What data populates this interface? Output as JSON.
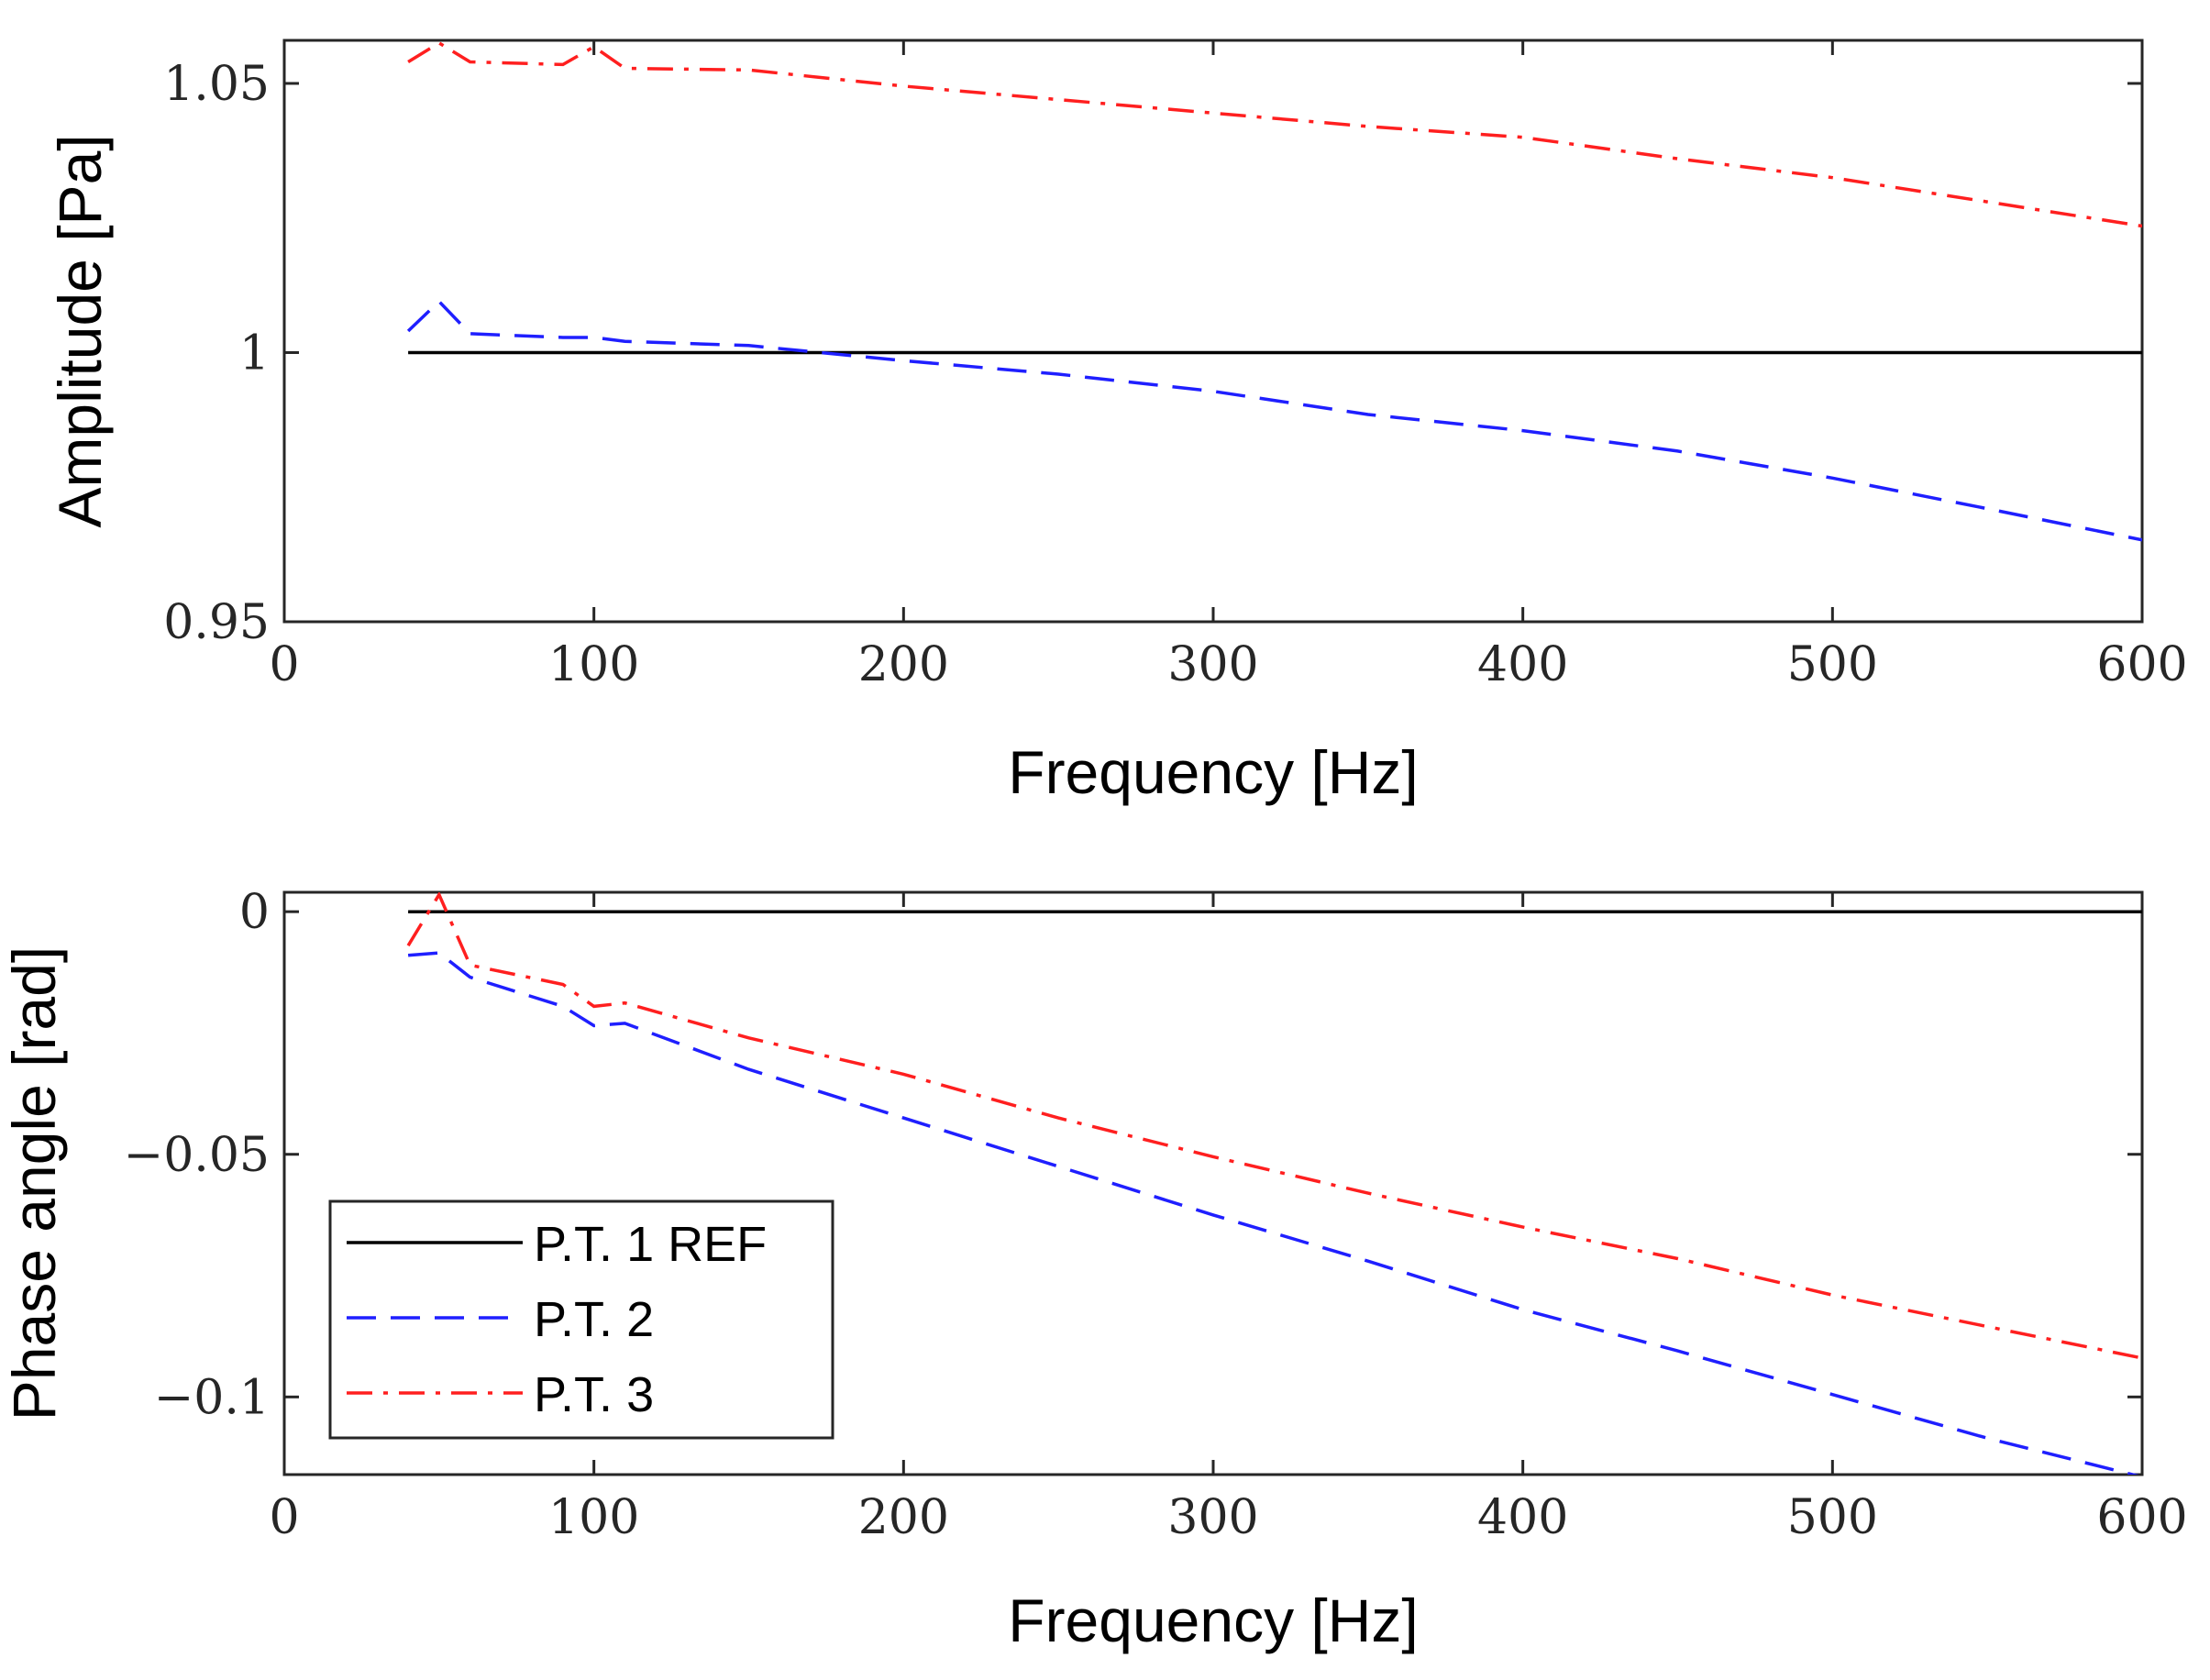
{
  "chart_data": [
    {
      "type": "line",
      "title": "",
      "xlabel": "Frequency [Hz]",
      "ylabel": "Amplitude [Pa]",
      "xlim": [
        0,
        600
      ],
      "ylim": [
        0.95,
        1.058
      ],
      "xticks": [
        0,
        100,
        200,
        300,
        400,
        500,
        600
      ],
      "xtick_labels": [
        "0",
        "100",
        "200",
        "300",
        "400",
        "500",
        "600"
      ],
      "yticks": [
        0.95,
        1,
        1.05
      ],
      "ytick_labels": [
        "0.95",
        "1",
        "1.05"
      ],
      "grid": false,
      "series": [
        {
          "name": "P.T. 1 REF",
          "color": "#000000",
          "style": "solid",
          "x": [
            40,
            600
          ],
          "y": [
            1.0,
            1.0
          ]
        },
        {
          "name": "P.T. 2",
          "color": "#1f1fff",
          "style": "dashed",
          "x": [
            40,
            50,
            60,
            90,
            100,
            110,
            150,
            200,
            250,
            300,
            350,
            400,
            450,
            500,
            550,
            600
          ],
          "y": [
            1.004,
            1.0095,
            1.0035,
            1.0028,
            1.0028,
            1.0021,
            1.0013,
            0.9985,
            0.996,
            0.9928,
            0.9885,
            0.9855,
            0.9817,
            0.9767,
            0.971,
            0.9652
          ]
        },
        {
          "name": "P.T. 3",
          "color": "#ff1f1f",
          "style": "dashdot",
          "x": [
            40,
            50,
            60,
            90,
            100,
            110,
            150,
            200,
            250,
            300,
            350,
            400,
            450,
            500,
            550,
            600
          ],
          "y": [
            1.054,
            1.0575,
            1.054,
            1.0535,
            1.0568,
            1.0528,
            1.0525,
            1.0495,
            1.047,
            1.0445,
            1.042,
            1.04,
            1.036,
            1.0325,
            1.028,
            1.0235
          ]
        }
      ]
    },
    {
      "type": "line",
      "title": "",
      "xlabel": "Frequency [Hz]",
      "ylabel": "Phase angle [rad]",
      "xlim": [
        0,
        600
      ],
      "ylim": [
        -0.116,
        0.004
      ],
      "xticks": [
        0,
        100,
        200,
        300,
        400,
        500,
        600
      ],
      "xtick_labels": [
        "0",
        "100",
        "200",
        "300",
        "400",
        "500",
        "600"
      ],
      "yticks": [
        0,
        -0.05,
        -0.1
      ],
      "ytick_labels": [
        "0",
        "−0.05",
        "−0.1"
      ],
      "grid": false,
      "legend": {
        "placement": "bottom-left",
        "entries": [
          "P.T. 1 REF",
          "P.T. 2",
          "P.T. 3"
        ]
      },
      "series": [
        {
          "name": "P.T. 1 REF",
          "color": "#000000",
          "style": "solid",
          "x": [
            40,
            600
          ],
          "y": [
            0.0,
            0.0
          ]
        },
        {
          "name": "P.T. 2",
          "color": "#1f1fff",
          "style": "dashed",
          "x": [
            40,
            50,
            60,
            90,
            100,
            110,
            150,
            200,
            250,
            300,
            350,
            400,
            450,
            500,
            550,
            600
          ],
          "y": [
            -0.009,
            -0.0085,
            -0.0135,
            -0.0195,
            -0.0235,
            -0.023,
            -0.0325,
            -0.0425,
            -0.0525,
            -0.0625,
            -0.072,
            -0.082,
            -0.0905,
            -0.0995,
            -0.1085,
            -0.1165
          ]
        },
        {
          "name": "P.T. 3",
          "color": "#ff1f1f",
          "style": "dashdot",
          "x": [
            40,
            50,
            60,
            90,
            100,
            110,
            150,
            200,
            250,
            300,
            350,
            400,
            450,
            500,
            550,
            600
          ],
          "y": [
            -0.007,
            0.0035,
            -0.011,
            -0.015,
            -0.0195,
            -0.0188,
            -0.026,
            -0.0335,
            -0.0425,
            -0.0505,
            -0.058,
            -0.065,
            -0.0715,
            -0.079,
            -0.0855,
            -0.092
          ]
        }
      ]
    }
  ]
}
